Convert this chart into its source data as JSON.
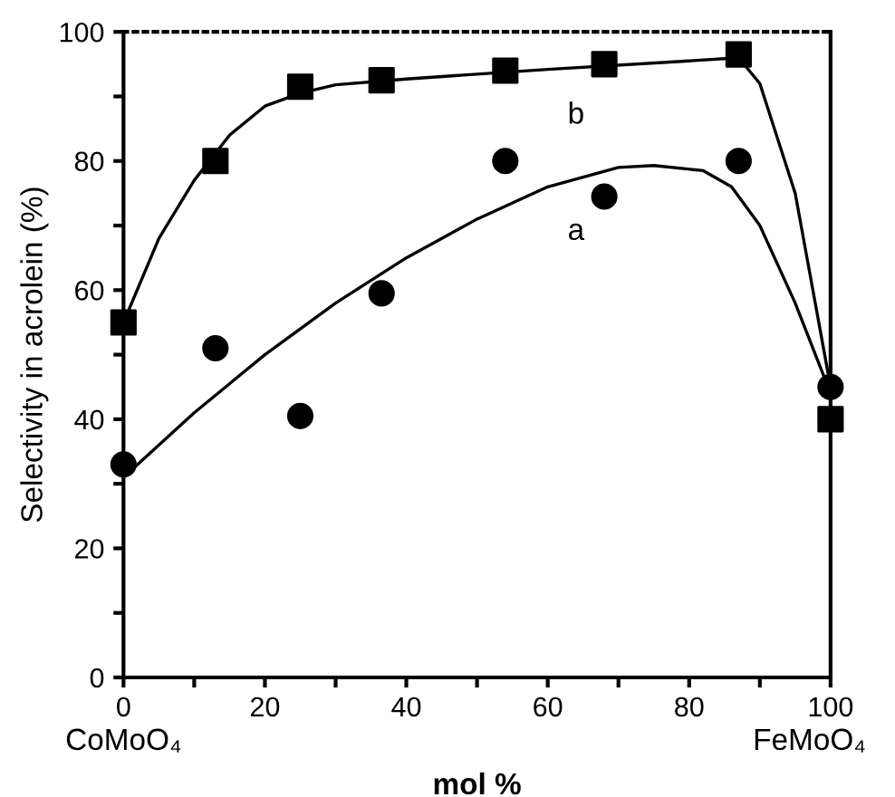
{
  "chart_data": {
    "type": "scatter",
    "xlabel": "mol %",
    "ylabel": "Selectivity in acrolein (%)",
    "xlim": [
      0,
      100
    ],
    "ylim": [
      0,
      100
    ],
    "xticks": [
      0,
      {
        "value": 10,
        "label": null
      },
      20,
      {
        "value": 30,
        "label": null
      },
      40,
      {
        "value": 50,
        "label": null
      },
      60,
      {
        "value": 70,
        "label": null
      },
      80,
      {
        "value": 90,
        "label": null
      },
      100
    ],
    "yticks": [
      0,
      {
        "value": 10,
        "label": null
      },
      20,
      {
        "value": 30,
        "label": null
      },
      40,
      {
        "value": 50,
        "label": null
      },
      60,
      {
        "value": 70,
        "label": null
      },
      80,
      {
        "value": 90,
        "label": null
      },
      100
    ],
    "grid": false,
    "legend": false,
    "series": [
      {
        "marker": "circle",
        "color": "#000000",
        "x": [
          0,
          13,
          25,
          36.5,
          54,
          68,
          87,
          100
        ],
        "values": [
          33,
          51,
          40.5,
          59.5,
          80,
          74.5,
          80,
          45
        ]
      },
      {
        "marker": "square",
        "color": "#000000",
        "x": [
          0,
          13,
          25,
          36.5,
          54,
          68,
          87,
          100
        ],
        "values": [
          55,
          80,
          91.5,
          92.5,
          94,
          95,
          96.5,
          40
        ]
      },
      {
        "type": "line",
        "marker": "none",
        "line_style": "solid",
        "color": "#000000",
        "x": [
          0,
          10,
          20,
          30,
          40,
          50,
          60,
          70,
          75,
          82,
          86,
          90,
          95,
          100
        ],
        "values": [
          31,
          41,
          50,
          58,
          65,
          71,
          76,
          79,
          79.3,
          78.5,
          76,
          70,
          58,
          44
        ]
      },
      {
        "type": "line",
        "marker": "none",
        "line_style": "solid",
        "color": "#000000",
        "x": [
          0,
          5,
          10,
          15,
          20,
          25,
          30,
          40,
          60,
          80,
          87,
          90,
          95,
          100
        ],
        "values": [
          55,
          68,
          77,
          84,
          88.5,
          90.5,
          91.8,
          92.7,
          94.2,
          95.5,
          96,
          92,
          75,
          45
        ]
      }
    ],
    "annotations": [
      "b",
      "a",
      "CoMoO₄",
      "FeMoO₄"
    ]
  }
}
